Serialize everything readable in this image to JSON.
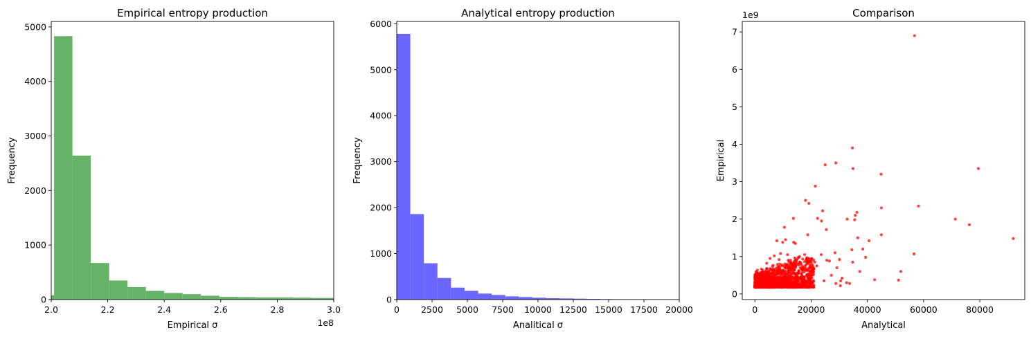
{
  "chart_data": [
    {
      "type": "bar",
      "subtype": "histogram",
      "title": "Empirical entropy production",
      "xlabel": "Empirical σ",
      "ylabel": "Frequency",
      "x_offset_label": "1e8",
      "color": "#66b266",
      "xlim": [
        2.0,
        3.0
      ],
      "ylim": [
        0,
        5100
      ],
      "xticks": [
        "2.0",
        "2.2",
        "2.4",
        "2.6",
        "2.8",
        "3.0"
      ],
      "yticks": [
        "0",
        "1000",
        "2000",
        "3000",
        "4000",
        "5000"
      ],
      "bin_edges": [
        1.935,
        2.01,
        2.075,
        2.14,
        2.205,
        2.27,
        2.335,
        2.4,
        2.465,
        2.53,
        2.595,
        2.66,
        2.725,
        2.79,
        2.855,
        2.92,
        2.985,
        3.05
      ],
      "values": [
        80,
        4830,
        2640,
        670,
        350,
        230,
        160,
        120,
        100,
        70,
        50,
        45,
        40,
        40,
        35,
        30,
        30
      ]
    },
    {
      "type": "bar",
      "subtype": "histogram",
      "title": "Analytical entropy production",
      "xlabel": "Analitical σ",
      "ylabel": "Frequency",
      "color": "#6b66ff",
      "xlim": [
        0,
        20000
      ],
      "ylim": [
        0,
        6050
      ],
      "xticks": [
        "0",
        "2500",
        "5000",
        "7500",
        "10000",
        "12500",
        "15000",
        "17500",
        "20000"
      ],
      "yticks": [
        "0",
        "1000",
        "2000",
        "3000",
        "4000",
        "5000",
        "6000"
      ],
      "bin_edges": [
        0,
        960,
        1920,
        2880,
        3840,
        4800,
        5760,
        6720,
        7680,
        8640,
        9600,
        10560,
        11520,
        12480,
        13440,
        14400,
        15360,
        16320,
        17280,
        18240,
        19200
      ],
      "values": [
        5780,
        1860,
        790,
        470,
        260,
        190,
        130,
        100,
        70,
        55,
        40,
        30,
        25,
        20,
        15,
        10,
        8,
        6,
        5,
        4
      ]
    },
    {
      "type": "scatter",
      "title": "Comparison",
      "xlabel": "Analytical",
      "ylabel": "Empirical",
      "y_offset_label": "1e9",
      "color": "#ff0000",
      "xlim": [
        -4500,
        96000
      ],
      "ylim": [
        -0.15,
        7.28
      ],
      "xticks": [
        0,
        20000,
        40000,
        60000,
        80000
      ],
      "yticks": [
        0,
        1,
        2,
        3,
        4,
        5,
        6,
        7
      ],
      "points": [
        [
          56800,
          6.9
        ],
        [
          34700,
          3.9
        ],
        [
          25000,
          3.45
        ],
        [
          28800,
          3.5
        ],
        [
          34900,
          3.35
        ],
        [
          44900,
          3.2
        ],
        [
          79500,
          3.35
        ],
        [
          21500,
          2.88
        ],
        [
          58200,
          2.35
        ],
        [
          45000,
          2.3
        ],
        [
          18000,
          2.5
        ],
        [
          19200,
          2.42
        ],
        [
          24100,
          2.22
        ],
        [
          35700,
          2.1
        ],
        [
          36300,
          2.18
        ],
        [
          23700,
          1.95
        ],
        [
          22300,
          2.02
        ],
        [
          32800,
          2.0
        ],
        [
          35500,
          1.98
        ],
        [
          71300,
          2.0
        ],
        [
          76300,
          1.85
        ],
        [
          13700,
          2.02
        ],
        [
          10500,
          1.78
        ],
        [
          25400,
          1.72
        ],
        [
          91900,
          1.48
        ],
        [
          45000,
          1.58
        ],
        [
          36600,
          1.5
        ],
        [
          40600,
          1.42
        ],
        [
          34500,
          1.18
        ],
        [
          38400,
          1.2
        ],
        [
          18800,
          1.58
        ],
        [
          7800,
          1.42
        ],
        [
          10900,
          1.45
        ],
        [
          13800,
          1.38
        ],
        [
          14400,
          1.35
        ],
        [
          9900,
          1.38
        ],
        [
          56600,
          1.07
        ],
        [
          39400,
          0.98
        ],
        [
          34800,
          0.85
        ],
        [
          30100,
          0.92
        ],
        [
          29200,
          0.7
        ],
        [
          28500,
          1.1
        ],
        [
          26500,
          0.88
        ],
        [
          37300,
          0.6
        ],
        [
          51900,
          0.6
        ],
        [
          42600,
          0.38
        ],
        [
          51100,
          0.37
        ],
        [
          32600,
          0.3
        ],
        [
          31000,
          0.42
        ],
        [
          33700,
          0.28
        ],
        [
          30500,
          0.35
        ],
        [
          25600,
          0.9
        ],
        [
          23600,
          1.05
        ],
        [
          27200,
          0.5
        ],
        [
          22000,
          0.75
        ],
        [
          21300,
          0.85
        ],
        [
          20200,
          0.62
        ],
        [
          19100,
          0.95
        ],
        [
          17700,
          1.05
        ],
        [
          16500,
          0.78
        ],
        [
          17400,
          0.42
        ],
        [
          15900,
          1.0
        ],
        [
          14900,
          0.92
        ],
        [
          24600,
          0.35
        ],
        [
          28800,
          0.28
        ],
        [
          30400,
          0.22
        ],
        [
          12700,
          0.9
        ],
        [
          11600,
          1.05
        ],
        [
          9100,
          1.08
        ],
        [
          6900,
          1.02
        ],
        [
          5400,
          0.95
        ],
        [
          8600,
          0.92
        ],
        [
          12100,
          0.72
        ],
        [
          4200,
          0.82
        ],
        [
          2800,
          0.55
        ],
        [
          1900,
          0.45
        ],
        [
          6200,
          0.65
        ]
      ],
      "dense_cluster": {
        "x_range": [
          0,
          21000
        ],
        "y_range": [
          0.18,
          0.8
        ],
        "note": "thousands of overlapping points near the origin"
      }
    }
  ]
}
